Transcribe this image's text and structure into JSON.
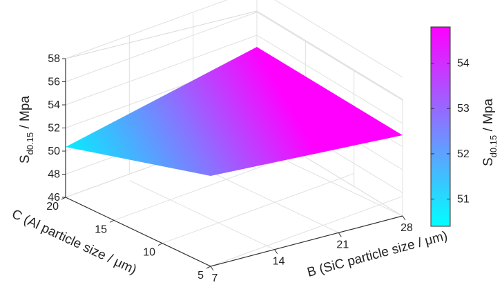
{
  "chart_data": {
    "type": "surface",
    "x_label": "B (SiC particle size / μm)",
    "y_label": "C (Al particle size / μm)",
    "z_label": {
      "main": "S",
      "sub": "d0.15",
      "suffix": " / Mpa"
    },
    "x_ticks": [
      "7",
      "14",
      "21",
      "28"
    ],
    "y_ticks": [
      "5",
      "10",
      "15",
      "20"
    ],
    "z_ticks": [
      "46",
      "48",
      "50",
      "52",
      "54",
      "56",
      "58"
    ],
    "xlim": [
      7,
      28
    ],
    "ylim": [
      5,
      20
    ],
    "zlim": [
      46,
      58
    ],
    "grid": true,
    "colormap": {
      "from": "#00ffff",
      "to": "#ff00ff",
      "name": "cool"
    },
    "colorbar": {
      "label": {
        "main": "S",
        "sub": "d0.15",
        "suffix": " / Mpa"
      },
      "ticks": [
        "51",
        "52",
        "53",
        "54"
      ],
      "range": [
        50.4,
        54.8
      ]
    },
    "surface_points": [
      {
        "B": 7,
        "C": 5,
        "S": 47.6
      },
      {
        "B": 28,
        "C": 5,
        "S": 50.4
      },
      {
        "B": 28,
        "C": 20,
        "S": 57.8
      },
      {
        "B": 7,
        "C": 20,
        "S": 50.1
      }
    ]
  }
}
